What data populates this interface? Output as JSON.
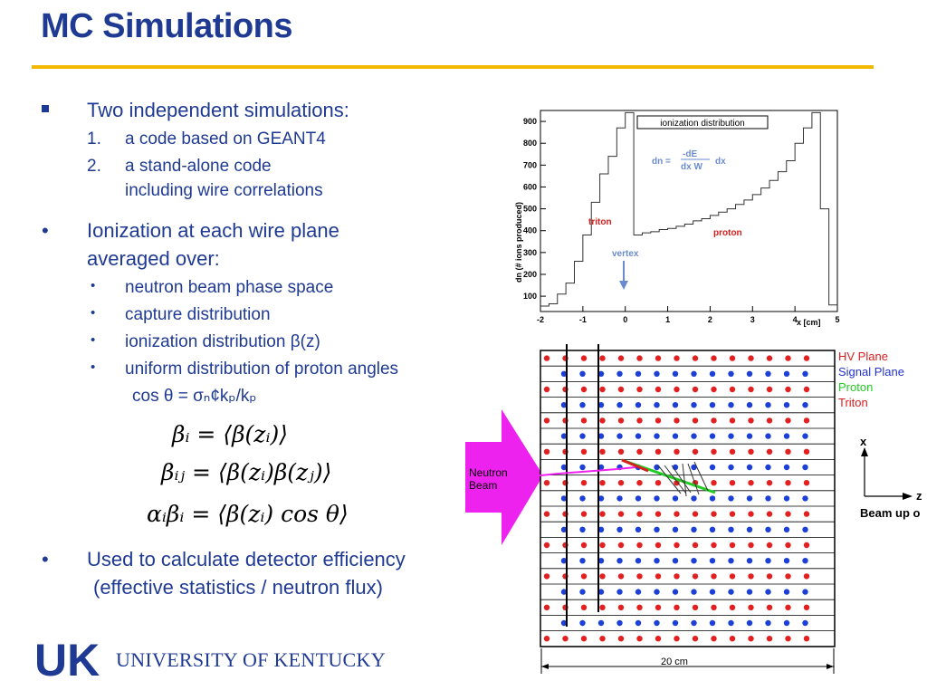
{
  "title": "MC Simulations",
  "left": {
    "b1": "Two independent simulations:",
    "b1_items": [
      {
        "num": "1.",
        "text": "a code based on GEANT4"
      },
      {
        "num": "2.",
        "text": "a stand-alone code"
      }
    ],
    "b1_item2_cont": "including wire correlations",
    "b2_line1": "Ionization at each wire plane",
    "b2_line2": "averaged over:",
    "b2_subs": [
      "neutron beam phase space",
      "capture distribution",
      "ionization distribution β(z)",
      "uniform distribution of proton angles"
    ],
    "cos_line": "cos θ = σₙ¢kₚ/kₚ",
    "equations": [
      "βᵢ = ⟨β(zᵢ)⟩",
      "βᵢⱼ = ⟨β(zᵢ)β(zⱼ)⟩",
      "αᵢβᵢ = ⟨β(zᵢ) cos θ⟩"
    ],
    "b3_line1": "Used to calculate detector efficiency",
    "b3_line2": "(effective statistics / neutron flux)"
  },
  "logo": {
    "mark": "UK",
    "name": "UNIVERSITY OF KENTUCKY",
    "colors": {
      "blue": "#1f3a93"
    }
  },
  "chart_data": {
    "type": "line",
    "title": "ionization distribution",
    "xlabel": "x [cm]",
    "ylabel": "dn  (# ions produced)",
    "xlim": [
      -2,
      5
    ],
    "ylim": [
      30,
      950
    ],
    "xticks": [
      -2,
      -1,
      0,
      1,
      2,
      3,
      4,
      5
    ],
    "yticks": [
      100,
      200,
      300,
      400,
      500,
      600,
      700,
      800,
      900
    ],
    "x": [
      -2.0,
      -1.8,
      -1.6,
      -1.4,
      -1.2,
      -1.0,
      -0.8,
      -0.6,
      -0.4,
      -0.2,
      0.0,
      0.2,
      0.4,
      0.6,
      0.8,
      1.0,
      1.2,
      1.4,
      1.6,
      1.8,
      2.0,
      2.2,
      2.4,
      2.6,
      2.8,
      3.0,
      3.2,
      3.4,
      3.6,
      3.8,
      4.0,
      4.2,
      4.4,
      4.6,
      4.8
    ],
    "y": [
      55,
      65,
      110,
      160,
      260,
      380,
      530,
      660,
      740,
      870,
      940,
      380,
      390,
      395,
      405,
      410,
      420,
      430,
      445,
      455,
      470,
      485,
      500,
      520,
      540,
      565,
      595,
      630,
      670,
      720,
      800,
      870,
      940,
      500,
      60
    ],
    "labels": {
      "formula_lhs": "dn =",
      "formula_num": "-dE",
      "formula_den": "dx W",
      "formula_rhs": "dx",
      "triton": "triton",
      "proton": "proton",
      "vertex": "vertex"
    },
    "colors": {
      "line": "#333333",
      "formula": "#6a8ccf",
      "particle": "#d62020",
      "vertex": "#6a8ccf"
    }
  },
  "detector": {
    "legend": [
      "HV Plane",
      "Signal Plane",
      "Proton",
      "Triton"
    ],
    "legend_colors": [
      "#d62020",
      "#2233cc",
      "#22cc22",
      "#d62020"
    ],
    "beam_label_1": "Neutron",
    "beam_label_2": "Beam",
    "axis_x": "x",
    "axis_z": "z",
    "beam_up": "Beam up o",
    "scale_label": "20 cm",
    "colors": {
      "hv": "#e32020",
      "signal": "#1c3fd6",
      "beam": "#ee22ee"
    }
  }
}
